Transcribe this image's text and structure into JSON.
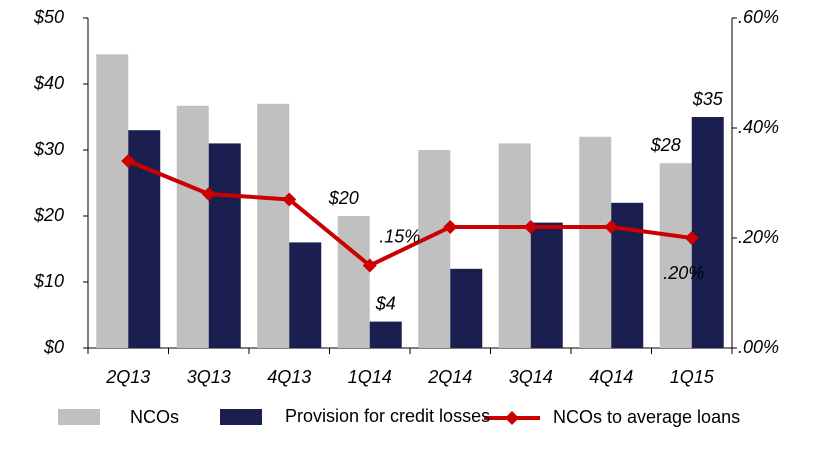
{
  "chart_data": {
    "type": "bar",
    "categories": [
      "2Q13",
      "3Q13",
      "4Q13",
      "1Q14",
      "2Q14",
      "3Q14",
      "4Q14",
      "1Q15"
    ],
    "series": [
      {
        "name": "NCOs",
        "color": "#c0c0c0",
        "values": [
          44.5,
          36.7,
          37,
          20,
          30,
          31,
          32,
          28
        ],
        "value_labels": [
          null,
          null,
          null,
          "$20",
          null,
          null,
          null,
          "$28"
        ]
      },
      {
        "name": "Provision for credit losses",
        "color": "#1b1f4f",
        "values": [
          33,
          31,
          16,
          4,
          12,
          19,
          22,
          35
        ],
        "value_labels": [
          null,
          null,
          null,
          "$4",
          null,
          null,
          null,
          "$35"
        ]
      },
      {
        "name": "NCOs to average loans",
        "type": "line",
        "axis": "y2",
        "color": "#cc0000",
        "values": [
          0.34,
          0.28,
          0.27,
          0.15,
          0.22,
          0.22,
          0.22,
          0.2
        ],
        "value_labels": [
          null,
          null,
          null,
          ".15%",
          null,
          null,
          null,
          ".20%"
        ]
      }
    ],
    "ylim": [
      0,
      50
    ],
    "yticks": [
      {
        "value": 0,
        "label": "$0"
      },
      {
        "value": 10,
        "label": "$10"
      },
      {
        "value": 20,
        "label": "$20"
      },
      {
        "value": 30,
        "label": "$30"
      },
      {
        "value": 40,
        "label": "$40"
      },
      {
        "value": 50,
        "label": "$50"
      }
    ],
    "y2lim": [
      0,
      0.6
    ],
    "y2ticks": [
      {
        "value": 0,
        "label": ".00%"
      },
      {
        "value": 0.2,
        "label": ".20%"
      },
      {
        "value": 0.4,
        "label": ".40%"
      },
      {
        "value": 0.6,
        "label": ".60%"
      }
    ],
    "legend": "bottom"
  }
}
